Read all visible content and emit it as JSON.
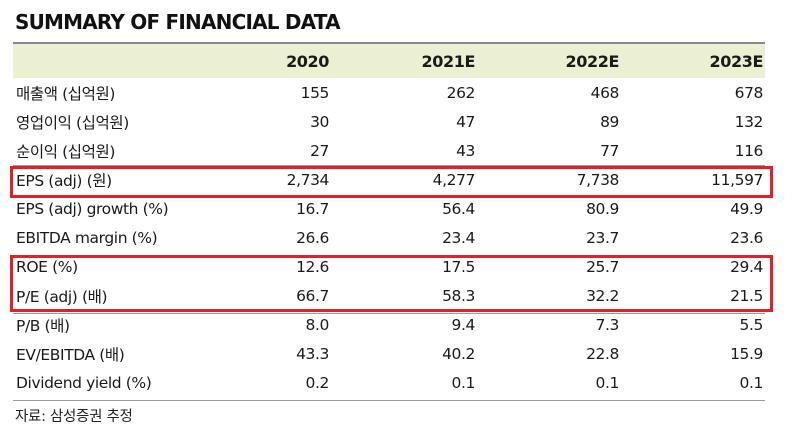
{
  "title": "SUMMARY OF FINANCIAL DATA",
  "table": {
    "columns": [
      "2020",
      "2021E",
      "2022E",
      "2023E"
    ],
    "rows": [
      {
        "label": "매출액 (십억원)",
        "values": [
          "155",
          "262",
          "468",
          "678"
        ]
      },
      {
        "label": "영업이익 (십억원)",
        "values": [
          "30",
          "47",
          "89",
          "132"
        ]
      },
      {
        "label": "순이익 (십억원)",
        "values": [
          "27",
          "43",
          "77",
          "116"
        ]
      },
      {
        "label": "EPS (adj) (원)",
        "values": [
          "2,734",
          "4,277",
          "7,738",
          "11,597"
        ]
      },
      {
        "label": "EPS (adj) growth (%)",
        "values": [
          "16.7",
          "56.4",
          "80.9",
          "49.9"
        ]
      },
      {
        "label": "EBITDA margin (%)",
        "values": [
          "26.6",
          "23.4",
          "23.7",
          "23.6"
        ]
      },
      {
        "label": "ROE (%)",
        "values": [
          "12.6",
          "17.5",
          "25.7",
          "29.4"
        ]
      },
      {
        "label": "P/E (adj) (배)",
        "values": [
          "66.7",
          "58.3",
          "32.2",
          "21.5"
        ]
      },
      {
        "label": "P/B (배)",
        "values": [
          "8.0",
          "9.4",
          "7.3",
          "5.5"
        ]
      },
      {
        "label": "EV/EBITDA (배)",
        "values": [
          "43.3",
          "40.2",
          "22.8",
          "15.9"
        ]
      },
      {
        "label": "Dividend yield (%)",
        "values": [
          "0.2",
          "0.1",
          "0.1",
          "0.1"
        ]
      }
    ]
  },
  "source": "자료: 삼성증권 추정",
  "colors": {
    "header_bg": "#ebf0d2",
    "highlight_box": "#e41f26"
  }
}
